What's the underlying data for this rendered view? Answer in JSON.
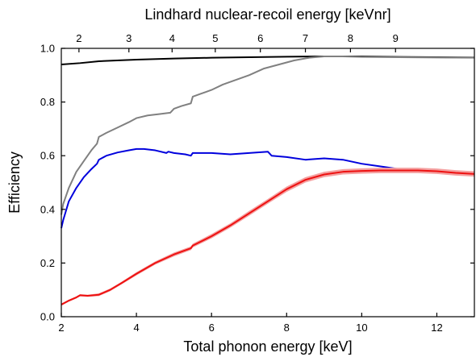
{
  "chart_data": {
    "type": "line",
    "title": "",
    "xlabel": "Total phonon energy [keV]",
    "ylabel": "Efficiency",
    "top_xlabel": "Lindhard nuclear-recoil energy [keVnr]",
    "xlim": [
      2,
      13
    ],
    "ylim": [
      0,
      1
    ],
    "x_ticks": [
      2,
      4,
      6,
      8,
      10,
      12
    ],
    "y_ticks": [
      0.0,
      0.2,
      0.4,
      0.6,
      0.8,
      1.0
    ],
    "y_tick_labels": [
      "0.0",
      "0.2",
      "0.4",
      "0.6",
      "0.8",
      "1.0"
    ],
    "top_ticks": [
      {
        "label": "2",
        "x_total": 2.47
      },
      {
        "label": "3",
        "x_total": 3.8
      },
      {
        "label": "4",
        "x_total": 4.95
      },
      {
        "label": "5",
        "x_total": 6.1
      },
      {
        "label": "6",
        "x_total": 7.3
      },
      {
        "label": "7",
        "x_total": 8.5
      },
      {
        "label": "8",
        "x_total": 9.7
      },
      {
        "label": "9",
        "x_total": 10.9
      }
    ],
    "grid": false,
    "legend": "none",
    "series": [
      {
        "color": "#000000",
        "x": [
          2.0,
          2.5,
          3.0,
          4.0,
          5.0,
          6.0,
          7.0,
          8.0,
          9.0,
          10.0,
          11.0,
          12.0,
          13.0
        ],
        "y": [
          0.94,
          0.945,
          0.952,
          0.958,
          0.962,
          0.965,
          0.967,
          0.969,
          0.97,
          0.97,
          0.968,
          0.967,
          0.966
        ]
      },
      {
        "color": "#808080",
        "x": [
          2.0,
          2.05,
          2.2,
          2.4,
          2.6,
          2.8,
          2.95,
          3.0,
          3.2,
          3.5,
          3.8,
          4.0,
          4.3,
          4.6,
          4.9,
          5.0,
          5.2,
          5.45,
          5.5,
          5.7,
          6.0,
          6.3,
          6.6,
          7.0,
          7.4,
          7.8,
          8.2,
          8.6,
          9.0,
          9.5,
          10.0,
          11.0,
          12.0,
          13.0
        ],
        "y": [
          0.38,
          0.42,
          0.48,
          0.54,
          0.58,
          0.62,
          0.645,
          0.67,
          0.685,
          0.705,
          0.725,
          0.74,
          0.75,
          0.755,
          0.76,
          0.775,
          0.785,
          0.795,
          0.82,
          0.83,
          0.845,
          0.865,
          0.88,
          0.9,
          0.925,
          0.94,
          0.955,
          0.965,
          0.97,
          0.97,
          0.968,
          0.967,
          0.966,
          0.965
        ]
      },
      {
        "color": "#0000dd",
        "x": [
          2.0,
          2.05,
          2.2,
          2.4,
          2.6,
          2.8,
          2.95,
          3.0,
          3.2,
          3.5,
          3.8,
          4.0,
          4.2,
          4.5,
          4.8,
          4.85,
          5.0,
          5.3,
          5.45,
          5.5,
          6.0,
          6.5,
          7.0,
          7.5,
          7.6,
          8.0,
          8.5,
          9.0,
          9.5,
          10.0,
          10.5,
          11.0,
          11.5,
          12.0,
          12.5,
          13.0
        ],
        "y": [
          0.33,
          0.36,
          0.43,
          0.48,
          0.52,
          0.55,
          0.57,
          0.585,
          0.6,
          0.612,
          0.62,
          0.625,
          0.625,
          0.62,
          0.61,
          0.615,
          0.61,
          0.605,
          0.6,
          0.61,
          0.61,
          0.605,
          0.61,
          0.615,
          0.6,
          0.595,
          0.585,
          0.59,
          0.585,
          0.57,
          0.56,
          0.55,
          0.545,
          0.54,
          0.537,
          0.535
        ]
      },
      {
        "color": "#ee1111",
        "band_color": "#f4a0a0",
        "x": [
          2.0,
          2.2,
          2.4,
          2.5,
          2.7,
          3.0,
          3.3,
          3.6,
          4.0,
          4.5,
          5.0,
          5.45,
          5.5,
          6.0,
          6.5,
          7.0,
          7.5,
          8.0,
          8.5,
          9.0,
          9.5,
          10.0,
          10.5,
          11.0,
          11.5,
          12.0,
          12.5,
          13.0
        ],
        "y": [
          0.045,
          0.06,
          0.072,
          0.08,
          0.078,
          0.082,
          0.1,
          0.125,
          0.16,
          0.2,
          0.232,
          0.255,
          0.265,
          0.3,
          0.34,
          0.385,
          0.43,
          0.475,
          0.51,
          0.53,
          0.54,
          0.543,
          0.545,
          0.545,
          0.545,
          0.542,
          0.536,
          0.532
        ],
        "band": [
          0.004,
          0.004,
          0.004,
          0.004,
          0.004,
          0.005,
          0.005,
          0.005,
          0.006,
          0.006,
          0.007,
          0.007,
          0.007,
          0.008,
          0.008,
          0.009,
          0.009,
          0.01,
          0.01,
          0.01,
          0.01,
          0.01,
          0.01,
          0.01,
          0.01,
          0.01,
          0.01,
          0.01
        ]
      }
    ]
  }
}
